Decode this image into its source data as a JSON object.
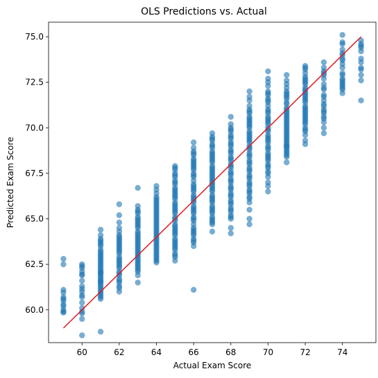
{
  "chart_data": {
    "type": "scatter",
    "title": "OLS Predictions vs. Actual",
    "xlabel": "Actual Exam Score",
    "ylabel": "Predicted Exam Score",
    "xlim": [
      58.2,
      75.8
    ],
    "ylim": [
      58.2,
      75.8
    ],
    "xticks": [
      60,
      62,
      64,
      66,
      68,
      70,
      72,
      74
    ],
    "yticks": [
      60.0,
      62.5,
      65.0,
      67.5,
      70.0,
      72.5,
      75.0
    ],
    "xtick_labels": [
      "60",
      "62",
      "64",
      "66",
      "68",
      "70",
      "72",
      "74"
    ],
    "ytick_labels": [
      "60.0",
      "62.5",
      "65.0",
      "67.5",
      "70.0",
      "72.5",
      "75.0"
    ],
    "grid": false,
    "point_color": "#1f77b4",
    "point_alpha": 0.6,
    "line_color": "#e31a1c",
    "reference_line": {
      "x": [
        59,
        75
      ],
      "y": [
        59,
        75
      ]
    },
    "series": [
      {
        "x_values": [
          59,
          59,
          59,
          59,
          59,
          59,
          59,
          59,
          59,
          59,
          59,
          59,
          60,
          60,
          60,
          60,
          60,
          60,
          60,
          60,
          60,
          60,
          60,
          60,
          60,
          60,
          60,
          60,
          60,
          60,
          61,
          61,
          61,
          61,
          61,
          61,
          61,
          61,
          61,
          61,
          61,
          61,
          61,
          61,
          61,
          61,
          61,
          61,
          61,
          61,
          61,
          61,
          61,
          61,
          61,
          61,
          61,
          61,
          61,
          61,
          61,
          61,
          61,
          61,
          61,
          61,
          61,
          61
        ],
        "y_values": [
          62.8,
          62.5,
          61.1,
          60.7,
          60.6,
          60.3,
          60.2,
          59.85,
          60.0,
          59.9,
          60.5,
          60.95,
          62.5,
          62.3,
          62.1,
          61.9,
          61.6,
          61.3,
          61.0,
          60.7,
          60.4,
          60.1,
          59.8,
          59.5,
          62.4,
          61.95,
          60.8,
          61.15,
          59.9,
          58.6,
          64.4,
          64.1,
          63.7,
          63.5,
          63.3,
          63.0,
          62.8,
          62.6,
          62.4,
          62.2,
          62.0,
          61.8,
          61.6,
          61.4,
          61.2,
          61.0,
          60.8,
          60.6,
          58.8,
          63.9,
          63.1,
          62.7,
          62.3,
          61.7,
          61.3,
          60.9,
          62.9,
          62.5,
          61.9,
          61.1,
          63.6,
          63.2,
          62.1,
          61.5,
          60.7,
          63.8,
          62.05,
          61.55
        ]
      },
      {
        "x_values": [
          62,
          62,
          62,
          62,
          62,
          62,
          62,
          62,
          62,
          62,
          62,
          62,
          62,
          62,
          62,
          62,
          62,
          62,
          62,
          62,
          62,
          62,
          62,
          62,
          62,
          62,
          62,
          62,
          62,
          62,
          62,
          62,
          63,
          63,
          63,
          63,
          63,
          63,
          63,
          63,
          63,
          63,
          63,
          63,
          63,
          63,
          63,
          63,
          63,
          63,
          63,
          63,
          63,
          63,
          63,
          63,
          63,
          63,
          63,
          63,
          63,
          63,
          63,
          63,
          63,
          63,
          63,
          63,
          63
        ],
        "y_values": [
          65.8,
          65.2,
          64.8,
          64.5,
          64.3,
          64.1,
          63.9,
          63.7,
          63.5,
          63.3,
          63.1,
          62.9,
          62.7,
          62.5,
          62.3,
          62.1,
          61.9,
          61.7,
          61.5,
          61.3,
          61.0,
          64.0,
          63.6,
          63.2,
          62.8,
          62.4,
          62.0,
          61.6,
          61.2,
          63.8,
          63.4,
          62.6,
          66.7,
          65.7,
          65.4,
          65.1,
          64.9,
          64.7,
          64.5,
          64.3,
          64.1,
          63.9,
          63.7,
          63.5,
          63.3,
          63.1,
          62.9,
          62.7,
          62.5,
          62.3,
          62.1,
          61.9,
          61.5,
          65.5,
          65.0,
          64.6,
          64.2,
          63.8,
          63.4,
          63.0,
          62.6,
          62.2,
          64.8,
          64.0,
          63.2,
          62.4,
          65.3,
          63.6,
          62.8
        ]
      },
      {
        "x_values": [
          64,
          64,
          64,
          64,
          64,
          64,
          64,
          64,
          64,
          64,
          64,
          64,
          64,
          64,
          64,
          64,
          64,
          64,
          64,
          64,
          64,
          64,
          64,
          64,
          64,
          64,
          64,
          64,
          64,
          64,
          64,
          64,
          64,
          64,
          64,
          64,
          64,
          64,
          64,
          64,
          65,
          65,
          65,
          65,
          65,
          65,
          65,
          65,
          65,
          65,
          65,
          65,
          65,
          65,
          65,
          65,
          65,
          65,
          65,
          65,
          65,
          65,
          65,
          65,
          65,
          65,
          65,
          65,
          65,
          65,
          65,
          65,
          65,
          65,
          65,
          65,
          65,
          65,
          65,
          65,
          65,
          65,
          65,
          65
        ],
        "y_values": [
          66.8,
          66.6,
          66.4,
          66.1,
          65.9,
          65.7,
          65.5,
          65.3,
          65.1,
          64.9,
          64.7,
          64.5,
          64.3,
          64.1,
          63.9,
          63.7,
          63.5,
          63.3,
          63.1,
          62.9,
          62.7,
          62.6,
          66.0,
          65.6,
          65.2,
          64.8,
          64.4,
          64.0,
          63.6,
          63.2,
          62.8,
          65.8,
          65.0,
          64.2,
          63.4,
          66.2,
          64.6,
          63.8,
          63.0,
          65.4,
          67.9,
          67.7,
          67.5,
          67.3,
          67.1,
          66.9,
          66.7,
          66.5,
          66.3,
          66.1,
          65.9,
          65.7,
          65.5,
          65.3,
          65.1,
          64.9,
          64.7,
          64.5,
          64.3,
          64.1,
          63.9,
          63.7,
          63.5,
          63.3,
          63.1,
          62.9,
          62.7,
          67.8,
          67.0,
          66.2,
          65.4,
          64.6,
          63.8,
          63.0,
          67.4,
          66.6,
          65.8,
          65.0,
          64.2,
          63.4,
          66.4,
          64.4,
          65.6,
          63.6
        ]
      },
      {
        "x_values": [
          66,
          66,
          66,
          66,
          66,
          66,
          66,
          66,
          66,
          66,
          66,
          66,
          66,
          66,
          66,
          66,
          66,
          66,
          66,
          66,
          66,
          66,
          66,
          66,
          66,
          66,
          66,
          66,
          66,
          66,
          66,
          66,
          66,
          66,
          66,
          66,
          66,
          66,
          66,
          66,
          66,
          66,
          66,
          66,
          66,
          67,
          67,
          67,
          67,
          67,
          67,
          67,
          67,
          67,
          67,
          67,
          67,
          67,
          67,
          67,
          67,
          67,
          67,
          67,
          67,
          67,
          67,
          67,
          67,
          67,
          67,
          67,
          67,
          67,
          67,
          67,
          67,
          67,
          67,
          67,
          67,
          67,
          67,
          67,
          67,
          67,
          67,
          67,
          67,
          67
        ],
        "y_values": [
          69.2,
          68.9,
          68.7,
          68.5,
          68.3,
          68.1,
          67.9,
          67.7,
          67.5,
          67.3,
          67.1,
          66.9,
          66.7,
          66.5,
          66.3,
          66.1,
          65.9,
          65.7,
          65.5,
          65.3,
          65.1,
          64.9,
          64.7,
          64.5,
          64.3,
          64.1,
          63.9,
          63.7,
          63.5,
          68.6,
          68.0,
          67.4,
          66.8,
          66.2,
          65.6,
          65.0,
          64.4,
          63.8,
          61.1,
          67.8,
          66.6,
          65.4,
          64.2,
          68.2,
          66.0,
          69.7,
          69.5,
          69.3,
          69.1,
          68.9,
          68.7,
          68.5,
          68.3,
          68.1,
          67.9,
          67.7,
          67.5,
          67.3,
          67.1,
          66.9,
          66.7,
          66.5,
          66.3,
          66.1,
          65.9,
          65.7,
          65.5,
          65.3,
          65.1,
          64.9,
          64.7,
          64.3,
          69.0,
          68.4,
          67.8,
          67.2,
          66.6,
          66.0,
          65.4,
          64.8,
          68.6,
          67.4,
          66.2,
          65.0,
          67.6,
          66.8,
          65.6,
          69.4,
          68.2,
          67.0
        ]
      },
      {
        "x_values": [
          68,
          68,
          68,
          68,
          68,
          68,
          68,
          68,
          68,
          68,
          68,
          68,
          68,
          68,
          68,
          68,
          68,
          68,
          68,
          68,
          68,
          68,
          68,
          68,
          68,
          68,
          68,
          68,
          68,
          68,
          68,
          68,
          68,
          68,
          68,
          68,
          68,
          68,
          68,
          68,
          68,
          68,
          68,
          69,
          69,
          69,
          69,
          69,
          69,
          69,
          69,
          69,
          69,
          69,
          69,
          69,
          69,
          69,
          69,
          69,
          69,
          69,
          69,
          69,
          69,
          69,
          69,
          69,
          69,
          69,
          69,
          69,
          69,
          69,
          69,
          69,
          69,
          69,
          69,
          69,
          69,
          69,
          69,
          69,
          69,
          69,
          69,
          69,
          69,
          69,
          69
        ],
        "y_values": [
          70.6,
          70.2,
          70.0,
          69.8,
          69.6,
          69.4,
          69.2,
          69.0,
          68.8,
          68.6,
          68.4,
          68.2,
          68.0,
          67.8,
          67.6,
          67.4,
          67.2,
          67.0,
          66.8,
          66.6,
          66.4,
          66.2,
          66.0,
          65.8,
          65.6,
          65.4,
          65.2,
          65.0,
          64.5,
          64.2,
          69.9,
          69.1,
          68.3,
          67.5,
          66.7,
          65.9,
          65.1,
          69.5,
          67.9,
          66.3,
          68.7,
          67.1,
          65.5,
          72.0,
          71.5,
          71.0,
          70.8,
          70.6,
          70.4,
          70.2,
          70.0,
          69.8,
          69.6,
          69.4,
          69.2,
          69.0,
          68.8,
          68.6,
          68.4,
          68.2,
          68.0,
          67.8,
          67.6,
          67.4,
          67.2,
          67.0,
          66.8,
          66.6,
          66.4,
          66.2,
          65.9,
          65.5,
          65.0,
          64.7,
          70.9,
          70.1,
          69.3,
          68.5,
          67.7,
          66.9,
          66.1,
          70.5,
          68.9,
          67.3,
          69.7,
          68.1,
          66.5,
          71.7,
          71.2,
          70.3,
          69.5
        ]
      },
      {
        "x_values": [
          70,
          70,
          70,
          70,
          70,
          70,
          70,
          70,
          70,
          70,
          70,
          70,
          70,
          70,
          70,
          70,
          70,
          70,
          70,
          70,
          70,
          70,
          70,
          70,
          70,
          70,
          70,
          70,
          70,
          70,
          70,
          70,
          70,
          70,
          70,
          70,
          70,
          70,
          70,
          70,
          70,
          70,
          70,
          70,
          71,
          71,
          71,
          71,
          71,
          71,
          71,
          71,
          71,
          71,
          71,
          71,
          71,
          71,
          71,
          71,
          71,
          71,
          71,
          71,
          71,
          71,
          71,
          71,
          71,
          71,
          71,
          71,
          71,
          71,
          71,
          71,
          71,
          71,
          71,
          71,
          71,
          71,
          71,
          71,
          71
        ],
        "y_values": [
          73.1,
          72.7,
          72.3,
          72.0,
          71.8,
          71.6,
          71.4,
          71.2,
          71.0,
          70.8,
          70.6,
          70.4,
          70.2,
          70.0,
          69.8,
          69.6,
          69.4,
          69.2,
          69.0,
          68.8,
          68.6,
          68.4,
          68.2,
          68.0,
          67.8,
          67.6,
          67.3,
          67.0,
          66.8,
          66.5,
          72.5,
          71.5,
          70.5,
          69.5,
          68.5,
          67.5,
          71.9,
          70.9,
          69.9,
          68.9,
          67.9,
          70.3,
          69.3,
          68.3,
          72.9,
          72.6,
          72.2,
          71.9,
          71.6,
          71.3,
          71.0,
          70.8,
          70.6,
          70.4,
          70.2,
          70.0,
          69.8,
          69.6,
          69.4,
          69.2,
          69.0,
          68.8,
          68.6,
          68.4,
          68.1,
          72.4,
          71.7,
          71.1,
          70.5,
          69.9,
          69.3,
          68.7,
          72.0,
          70.9,
          69.7,
          68.9,
          71.4,
          70.1,
          69.5,
          71.8,
          70.7,
          69.1,
          70.3,
          69.0,
          68.5
        ]
      },
      {
        "x_values": [
          72,
          72,
          72,
          72,
          72,
          72,
          72,
          72,
          72,
          72,
          72,
          72,
          72,
          72,
          72,
          72,
          72,
          72,
          72,
          72,
          72,
          72,
          72,
          72,
          72,
          72,
          72,
          72,
          72,
          72,
          72,
          72,
          72,
          72,
          72,
          73,
          73,
          73,
          73,
          73,
          73,
          73,
          73,
          73,
          73,
          73,
          73,
          73,
          73,
          73,
          73,
          73,
          73,
          73,
          73,
          73,
          73
        ],
        "y_values": [
          73.4,
          73.2,
          73.0,
          72.8,
          72.6,
          72.4,
          72.2,
          72.0,
          71.8,
          71.6,
          71.4,
          71.2,
          71.0,
          70.8,
          70.6,
          70.4,
          70.2,
          70.0,
          69.8,
          69.6,
          69.3,
          69.1,
          71.7,
          71.1,
          70.5,
          69.9,
          73.3,
          72.7,
          72.1,
          71.5,
          70.9,
          70.3,
          72.5,
          71.9,
          70.7,
          73.6,
          73.3,
          73.0,
          72.7,
          72.4,
          72.1,
          71.8,
          71.5,
          71.2,
          70.9,
          70.6,
          70.3,
          70.0,
          69.7,
          70.5,
          71.0,
          72.2,
          73.1,
          71.3,
          72.9,
          71.7,
          70.8
        ]
      },
      {
        "x_values": [
          74,
          74,
          74,
          74,
          74,
          74,
          74,
          74,
          74,
          74,
          74,
          74,
          74,
          74,
          74,
          74,
          74,
          74,
          74,
          74,
          75,
          75,
          75,
          75,
          75,
          75,
          75,
          75,
          75,
          75,
          75,
          75
        ],
        "y_values": [
          75.1,
          74.7,
          74.6,
          74.1,
          73.8,
          73.5,
          73.0,
          72.9,
          72.7,
          72.5,
          72.4,
          72.2,
          72.1,
          71.9,
          73.3,
          72.6,
          74.3,
          73.7,
          72.3,
          74.0,
          74.8,
          74.6,
          74.5,
          74.4,
          74.2,
          73.8,
          73.6,
          73.3,
          73.2,
          72.9,
          72.6,
          71.5
        ]
      }
    ]
  }
}
